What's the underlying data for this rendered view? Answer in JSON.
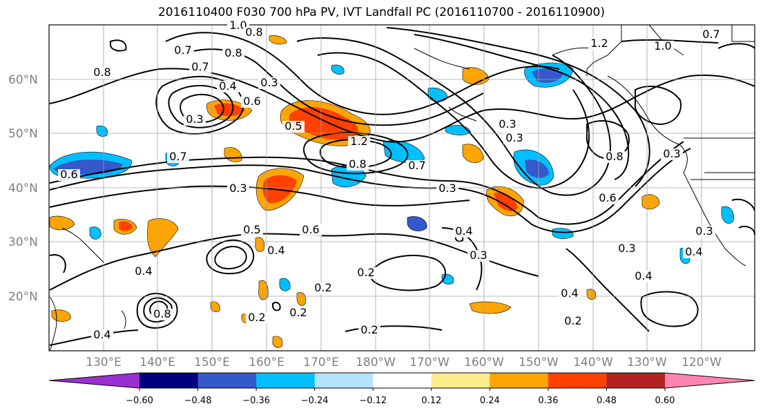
{
  "title": "2016110400 F030 700 hPa PV, IVT Landfall PC (2016110700 - 2016110900)",
  "lat_labels": [
    "60°N",
    "50°N",
    "40°N",
    "30°N",
    "20°N"
  ],
  "lon_labels": [
    "130°E",
    "140°E",
    "150°E",
    "160°E",
    "170°E",
    "180°W",
    "170°W",
    "160°W",
    "150°W",
    "140°W",
    "130°W",
    "120°W"
  ],
  "colorbar": {
    "colors": [
      "#9b30d0",
      "#000080",
      "#3558cc",
      "#00bfff",
      "#b3e4ff",
      "#ffffff",
      "#ffec8b",
      "#ffa500",
      "#ff4000",
      "#b22222",
      "#ff85b0"
    ],
    "tick_labels": [
      "−0.60",
      "−0.48",
      "−0.36",
      "−0.24",
      "−0.12",
      "0.12",
      "0.24",
      "0.36",
      "0.48",
      "0.60"
    ]
  },
  "contour_labels": [
    "1.0",
    "0.8",
    "0.7",
    "0.7",
    "0.8",
    "0.8",
    "0.4",
    "0.3",
    "0.6",
    "0.5",
    "0.3",
    "0.7",
    "0.3",
    "0.8",
    "1.2",
    "0.7",
    "0.6",
    "0.5",
    "0.4",
    "0.6",
    "0.4",
    "0.3",
    "0.4",
    "0.3",
    "0.2",
    "0.2",
    "0.2",
    "0.2",
    "0.4",
    "0.2",
    "0.3",
    "0.3",
    "0.8",
    "0.6",
    "0.3",
    "0.3",
    "0.3",
    "0.4",
    "0.4",
    "1.2",
    "1.0",
    "0.7",
    "0.2",
    "0.8",
    "0.4"
  ],
  "contour_label_positions": []
}
